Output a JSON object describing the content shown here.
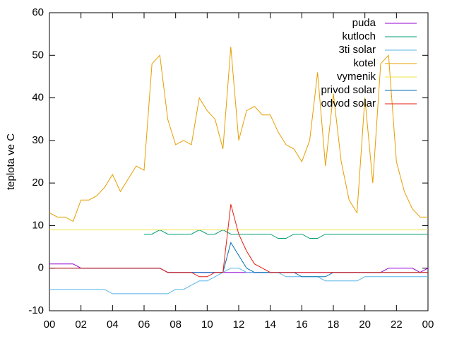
{
  "chart_data": {
    "type": "line",
    "ylabel": "teplota ve C",
    "x": [
      0,
      0.5,
      1,
      1.5,
      2,
      2.5,
      3,
      3.5,
      4,
      4.5,
      5,
      5.5,
      6,
      6.5,
      7,
      7.5,
      8,
      8.5,
      9,
      9.5,
      10,
      10.5,
      11,
      11.5,
      12,
      12.5,
      13,
      13.5,
      14,
      14.5,
      15,
      15.5,
      16,
      16.5,
      17,
      17.5,
      18,
      18.5,
      19,
      19.5,
      20,
      20.5,
      21,
      21.5,
      22,
      22.5,
      23,
      23.5,
      24
    ],
    "series": [
      {
        "name": "puda",
        "color": "#9400d3",
        "values": [
          1,
          1,
          1,
          1,
          0,
          0,
          0,
          0,
          0,
          0,
          0,
          0,
          0,
          0,
          0,
          -1,
          -1,
          -1,
          -1,
          -1,
          -1,
          -1,
          -1,
          -1,
          -1,
          -1,
          -1,
          -1,
          -1,
          -1,
          -1,
          -1,
          -1,
          -1,
          -1,
          -1,
          -1,
          -1,
          -1,
          -1,
          -1,
          -1,
          -1,
          0,
          0,
          0,
          0,
          -1,
          0
        ]
      },
      {
        "name": "kutloch",
        "color": "#009e73",
        "values": [
          null,
          null,
          null,
          null,
          null,
          null,
          null,
          null,
          null,
          null,
          null,
          null,
          8,
          8,
          9,
          8,
          8,
          8,
          8,
          9,
          8,
          8,
          9,
          8,
          8,
          8,
          8,
          8,
          8,
          7,
          7,
          8,
          8,
          7,
          7,
          8,
          8,
          8,
          8,
          8,
          8,
          8,
          8,
          8,
          8,
          8,
          8,
          8,
          8
        ]
      },
      {
        "name": "3ti solar",
        "color": "#56b4e9",
        "values": [
          -5,
          -5,
          -5,
          -5,
          -5,
          -5,
          -5,
          -5,
          -6,
          -6,
          -6,
          -6,
          -6,
          -6,
          -6,
          -6,
          -5,
          -5,
          -4,
          -3,
          -3,
          -2,
          -1,
          0,
          0,
          -1,
          -1,
          -1,
          -1,
          -1,
          -2,
          -2,
          -2,
          -2,
          -2,
          -3,
          -3,
          -3,
          -3,
          -3,
          -2,
          -2,
          -2,
          -2,
          -2,
          -2,
          -2,
          -2,
          -2
        ]
      },
      {
        "name": "kotel",
        "color": "#e69f00",
        "values": [
          13,
          12,
          12,
          11,
          16,
          16,
          17,
          19,
          22,
          18,
          21,
          24,
          23,
          48,
          50,
          35,
          29,
          30,
          29,
          40,
          37,
          35,
          28,
          52,
          30,
          37,
          38,
          36,
          36,
          32,
          29,
          28,
          25,
          30,
          46,
          24,
          41,
          25,
          16,
          13,
          40,
          20,
          48,
          50,
          25,
          18,
          14,
          12,
          12
        ]
      },
      {
        "name": "vymenik",
        "color": "#f0e442",
        "values": [
          9,
          9,
          9,
          9,
          9,
          9,
          9,
          9,
          9,
          9,
          9,
          9,
          9,
          9,
          9,
          9,
          9,
          9,
          9,
          9,
          9,
          9,
          9,
          9,
          9,
          9,
          9,
          9,
          9,
          9,
          9,
          9,
          9,
          9,
          9,
          9,
          9,
          9,
          9,
          9,
          9,
          9,
          9,
          9,
          9,
          9,
          9,
          9,
          9
        ]
      },
      {
        "name": "privod solar",
        "color": "#0072b2",
        "values": [
          0,
          0,
          0,
          0,
          0,
          0,
          0,
          0,
          0,
          0,
          0,
          0,
          0,
          0,
          0,
          -1,
          -1,
          -1,
          -1,
          -1,
          -1,
          -1,
          -1,
          6,
          3,
          0,
          -1,
          -1,
          -1,
          -1,
          -1,
          -1,
          -2,
          -2,
          -2,
          -2,
          -1,
          -1,
          -1,
          -1,
          -1,
          -1,
          -1,
          -1,
          -1,
          -1,
          -1,
          -1,
          -1
        ]
      },
      {
        "name": "odvod solar",
        "color": "#e51e10",
        "values": [
          0,
          0,
          0,
          0,
          0,
          0,
          0,
          0,
          0,
          0,
          0,
          0,
          0,
          0,
          0,
          -1,
          -1,
          -1,
          -1,
          -2,
          -2,
          -1,
          -1,
          15,
          8,
          4,
          1,
          0,
          -1,
          -1,
          -1,
          -1,
          -1,
          -1,
          -1,
          -1,
          -1,
          -1,
          -1,
          -1,
          -1,
          -1,
          -1,
          -1,
          -1,
          -1,
          -1,
          -1,
          -1
        ]
      }
    ],
    "xlim": [
      0,
      24
    ],
    "xticks": [
      {
        "value": 0,
        "label": "00"
      },
      {
        "value": 2,
        "label": "02"
      },
      {
        "value": 4,
        "label": "04"
      },
      {
        "value": 6,
        "label": "06"
      },
      {
        "value": 8,
        "label": "08"
      },
      10,
      12,
      14,
      16,
      18,
      20,
      22,
      {
        "value": 24,
        "label": "00"
      }
    ],
    "ylim": [
      -10,
      60
    ],
    "yticks": [
      -10,
      0,
      10,
      20,
      30,
      40,
      50,
      60
    ],
    "legend": "top-right"
  }
}
